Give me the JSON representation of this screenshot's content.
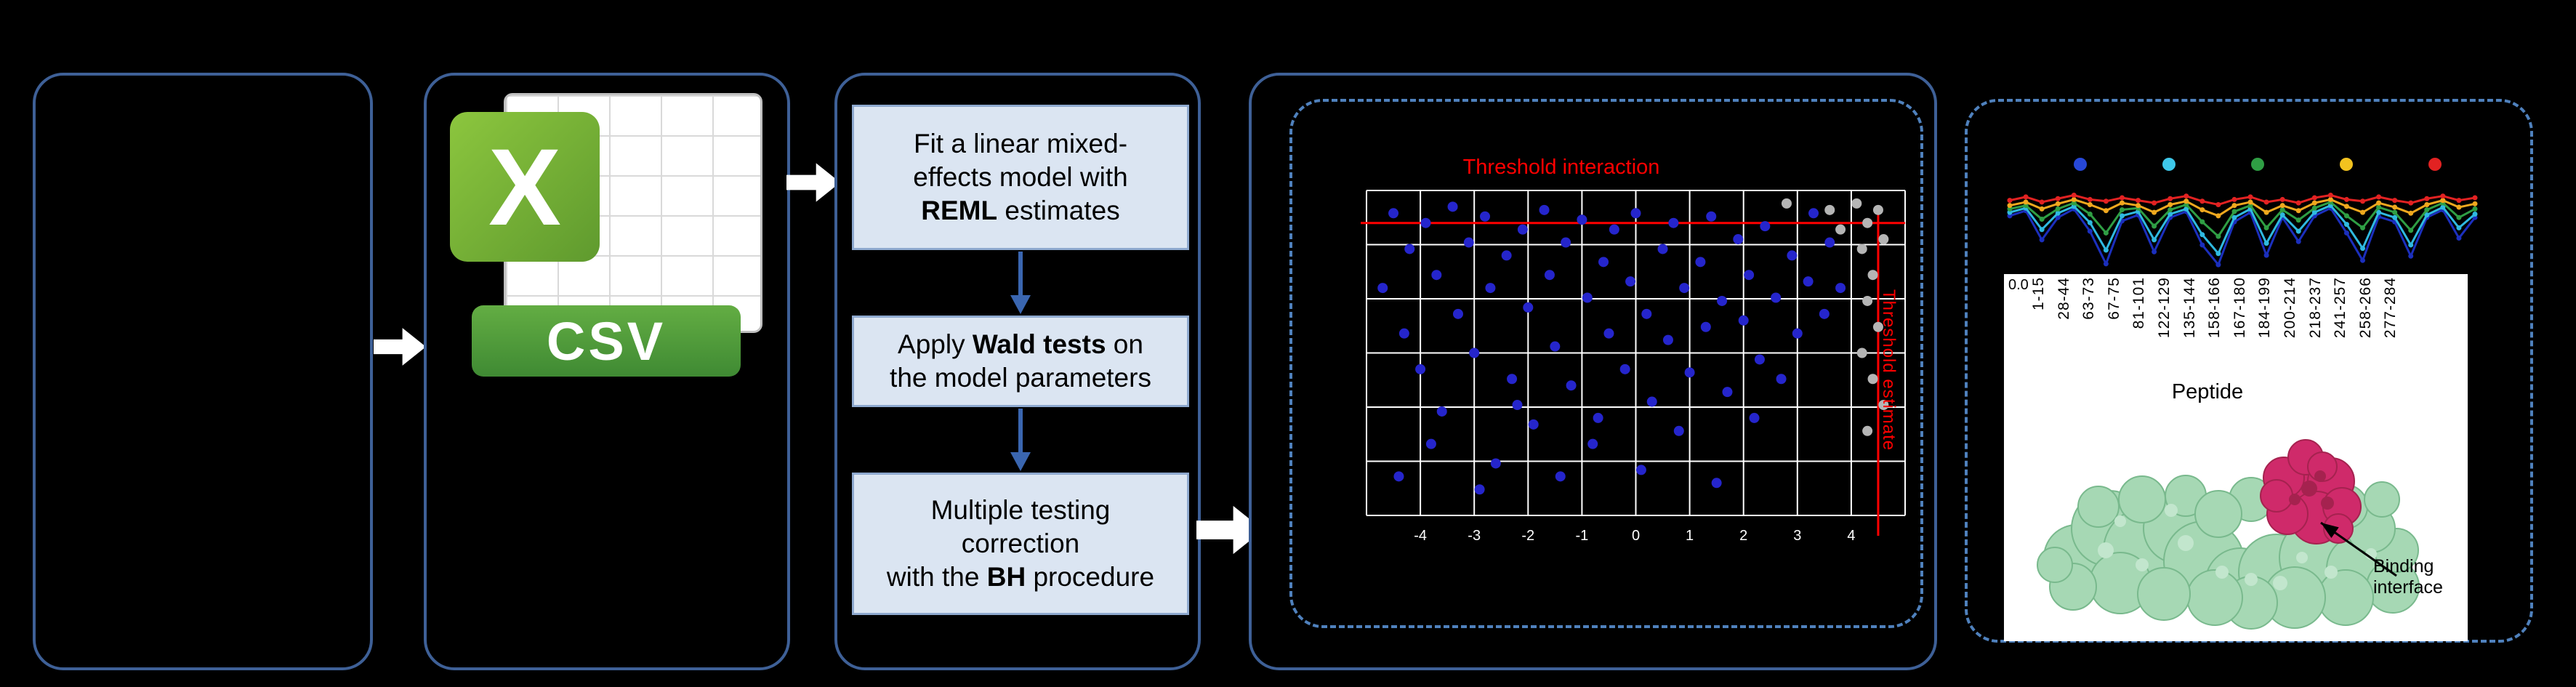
{
  "figure": {
    "csv": {
      "x_badge": "X",
      "banner": "CSV"
    },
    "flow": {
      "box1": {
        "l1": "Fit a linear mixed-",
        "l2": "effects model with",
        "l3_bold": "REML",
        "l3_rest": " estimates"
      },
      "box2": {
        "l1a": "Apply ",
        "l1_bold": "Wald tests",
        "l1c": " on",
        "l2": "the model parameters"
      },
      "box3": {
        "l1": "Multiple testing",
        "l2": "correction",
        "l3a": "with the ",
        "l3_bold": "BH",
        "l3c": " procedure"
      }
    },
    "binding_label": "Binding interface"
  },
  "chart_data": [
    {
      "type": "scatter",
      "title": "Threshold interaction",
      "rotated_label": "Threshold estimate",
      "grid_cols": 10,
      "grid_rows": 6,
      "grid_color": "#ffffff",
      "threshold_color": "#ff0000",
      "threshold_y_frac": 0.1,
      "threshold_x_frac": 0.95,
      "x_tick_labels": [
        "-4",
        "-3",
        "-2",
        "-1",
        "0",
        "1",
        "2",
        "3",
        "4"
      ],
      "series": [
        {
          "color": "#2525cc",
          "points": [
            [
              0.03,
              0.3
            ],
            [
              0.05,
              0.07
            ],
            [
              0.07,
              0.44
            ],
            [
              0.08,
              0.18
            ],
            [
              0.1,
              0.55
            ],
            [
              0.11,
              0.1
            ],
            [
              0.13,
              0.26
            ],
            [
              0.14,
              0.68
            ],
            [
              0.16,
              0.05
            ],
            [
              0.17,
              0.38
            ],
            [
              0.19,
              0.16
            ],
            [
              0.2,
              0.5
            ],
            [
              0.22,
              0.08
            ],
            [
              0.23,
              0.3
            ],
            [
              0.24,
              0.84
            ],
            [
              0.26,
              0.2
            ],
            [
              0.27,
              0.58
            ],
            [
              0.29,
              0.12
            ],
            [
              0.3,
              0.36
            ],
            [
              0.31,
              0.72
            ],
            [
              0.33,
              0.06
            ],
            [
              0.34,
              0.26
            ],
            [
              0.35,
              0.48
            ],
            [
              0.37,
              0.16
            ],
            [
              0.38,
              0.6
            ],
            [
              0.4,
              0.09
            ],
            [
              0.41,
              0.33
            ],
            [
              0.42,
              0.78
            ],
            [
              0.44,
              0.22
            ],
            [
              0.45,
              0.44
            ],
            [
              0.46,
              0.12
            ],
            [
              0.48,
              0.55
            ],
            [
              0.49,
              0.28
            ],
            [
              0.5,
              0.07
            ],
            [
              0.52,
              0.38
            ],
            [
              0.53,
              0.65
            ],
            [
              0.55,
              0.18
            ],
            [
              0.56,
              0.46
            ],
            [
              0.57,
              0.1
            ],
            [
              0.59,
              0.3
            ],
            [
              0.6,
              0.56
            ],
            [
              0.62,
              0.22
            ],
            [
              0.63,
              0.42
            ],
            [
              0.64,
              0.08
            ],
            [
              0.66,
              0.34
            ],
            [
              0.67,
              0.62
            ],
            [
              0.69,
              0.15
            ],
            [
              0.7,
              0.4
            ],
            [
              0.71,
              0.26
            ],
            [
              0.73,
              0.52
            ],
            [
              0.74,
              0.11
            ],
            [
              0.76,
              0.33
            ],
            [
              0.77,
              0.58
            ],
            [
              0.79,
              0.2
            ],
            [
              0.8,
              0.44
            ],
            [
              0.82,
              0.28
            ],
            [
              0.83,
              0.07
            ],
            [
              0.85,
              0.38
            ],
            [
              0.86,
              0.16
            ],
            [
              0.88,
              0.3
            ],
            [
              0.06,
              0.88
            ],
            [
              0.12,
              0.78
            ],
            [
              0.21,
              0.92
            ],
            [
              0.28,
              0.66
            ],
            [
              0.36,
              0.88
            ],
            [
              0.43,
              0.7
            ],
            [
              0.51,
              0.86
            ],
            [
              0.58,
              0.74
            ],
            [
              0.65,
              0.9
            ],
            [
              0.72,
              0.7
            ]
          ]
        },
        {
          "color": "#b5b5b5",
          "points": [
            [
              0.91,
              0.04
            ],
            [
              0.93,
              0.1
            ],
            [
              0.95,
              0.06
            ],
            [
              0.92,
              0.18
            ],
            [
              0.94,
              0.26
            ],
            [
              0.96,
              0.15
            ],
            [
              0.93,
              0.34
            ],
            [
              0.95,
              0.42
            ],
            [
              0.92,
              0.5
            ],
            [
              0.94,
              0.58
            ],
            [
              0.96,
              0.66
            ],
            [
              0.93,
              0.74
            ],
            [
              0.86,
              0.06
            ],
            [
              0.88,
              0.12
            ],
            [
              0.78,
              0.04
            ]
          ]
        }
      ]
    },
    {
      "type": "line",
      "legend_dot_colors": [
        "#2748d8",
        "#3ec8ea",
        "#2f9e44",
        "#f2c21f",
        "#e22222"
      ],
      "series": [
        {
          "color": "#1b2fbd",
          "values": [
            0.62,
            0.68,
            0.34,
            0.6,
            0.7,
            0.44,
            0.06,
            0.56,
            0.63,
            0.2,
            0.6,
            0.67,
            0.28,
            0.05,
            0.55,
            0.66,
            0.16,
            0.6,
            0.32,
            0.62,
            0.71,
            0.42,
            0.1,
            0.61,
            0.55,
            0.15,
            0.6,
            0.69,
            0.36,
            0.6
          ]
        },
        {
          "color": "#2fb9e0",
          "values": [
            0.66,
            0.71,
            0.46,
            0.65,
            0.73,
            0.54,
            0.22,
            0.62,
            0.67,
            0.34,
            0.64,
            0.7,
            0.4,
            0.18,
            0.6,
            0.7,
            0.3,
            0.63,
            0.44,
            0.66,
            0.74,
            0.52,
            0.24,
            0.66,
            0.6,
            0.28,
            0.63,
            0.72,
            0.48,
            0.64
          ]
        },
        {
          "color": "#2f9e44",
          "values": [
            0.7,
            0.74,
            0.58,
            0.7,
            0.77,
            0.64,
            0.42,
            0.69,
            0.71,
            0.5,
            0.69,
            0.75,
            0.55,
            0.38,
            0.67,
            0.74,
            0.48,
            0.69,
            0.57,
            0.71,
            0.78,
            0.62,
            0.48,
            0.72,
            0.66,
            0.45,
            0.69,
            0.77,
            0.6,
            0.7
          ]
        },
        {
          "color": "#f0a81e",
          "values": [
            0.74,
            0.78,
            0.7,
            0.76,
            0.81,
            0.75,
            0.68,
            0.77,
            0.74,
            0.66,
            0.75,
            0.79,
            0.69,
            0.62,
            0.74,
            0.78,
            0.66,
            0.74,
            0.68,
            0.77,
            0.81,
            0.73,
            0.66,
            0.77,
            0.72,
            0.65,
            0.75,
            0.8,
            0.72,
            0.76
          ]
        },
        {
          "color": "#e22222",
          "values": [
            0.8,
            0.84,
            0.78,
            0.82,
            0.86,
            0.81,
            0.79,
            0.83,
            0.8,
            0.77,
            0.82,
            0.85,
            0.79,
            0.75,
            0.81,
            0.84,
            0.78,
            0.81,
            0.77,
            0.83,
            0.86,
            0.81,
            0.79,
            0.84,
            0.8,
            0.77,
            0.82,
            0.85,
            0.8,
            0.83
          ]
        }
      ],
      "y_tick_label": "0.0",
      "x_tick_labels": [
        "1-15",
        "28-44",
        "63-73",
        "67-75",
        "81-101",
        "122-129",
        "135-144",
        "158-166",
        "167-180",
        "184-199",
        "200-214",
        "218-237",
        "241-257",
        "258-266",
        "277-284"
      ],
      "xlabel": "Peptide"
    }
  ]
}
